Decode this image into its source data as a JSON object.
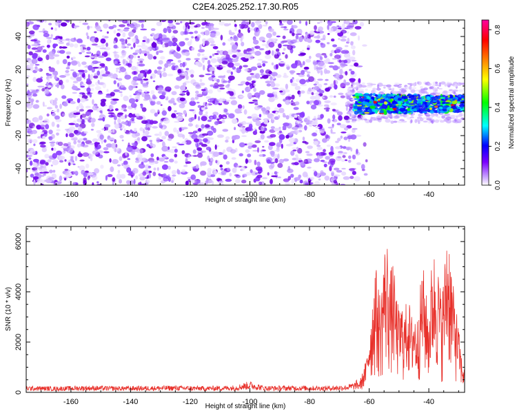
{
  "page": {
    "title": "C2E4.2025.252.17.30.R05"
  },
  "chart_data": [
    {
      "type": "heatmap",
      "title": "C2E4.2025.252.17.30.R05",
      "xlabel": "Height of straight line (km)",
      "ylabel": "Frequency (Hz)",
      "xlim": [
        -175,
        -28
      ],
      "ylim": [
        -50,
        50
      ],
      "xticks": [
        -160,
        -140,
        -120,
        -100,
        -80,
        -60,
        -40
      ],
      "yticks": [
        -40,
        -20,
        0,
        20,
        40
      ],
      "signal_band": {
        "x_start": -65,
        "x_end": -28,
        "center_frequency_hz": 0,
        "half_width_hz": 6,
        "peak_normalized_amplitude": 0.8
      },
      "noise_region": {
        "x_start": -175,
        "x_end": -65,
        "frequency_range": [
          -50,
          50
        ],
        "typical_normalized_amplitude": [
          0.0,
          0.1
        ]
      },
      "colorbar": {
        "label": "Normalized spectral amplitude",
        "range": [
          0.0,
          0.85
        ],
        "ticks": [
          "0.0",
          "0.2",
          "0.4",
          "0.6",
          "0.8"
        ],
        "colormap": [
          "#ffffff",
          "#c9a3ff",
          "#7a00ff",
          "#0000ff",
          "#00ffff",
          "#00ff00",
          "#ffff00",
          "#ff8000",
          "#ff0000",
          "#ff00a0"
        ]
      }
    },
    {
      "type": "line",
      "xlabel": "Height of straight line (km)",
      "ylabel": "SNR (10 * v/v)",
      "xlim": [
        -175,
        -28
      ],
      "ylim": [
        0,
        6600
      ],
      "xticks": [
        -160,
        -140,
        -120,
        -100,
        -80,
        -60,
        -40
      ],
      "yticks": [
        0,
        2000,
        4000,
        6000
      ],
      "series": [
        {
          "name": "SNR",
          "color": "#e8302a",
          "x": [
            -175,
            -165,
            -155,
            -145,
            -135,
            -125,
            -115,
            -105,
            -100,
            -95,
            -85,
            -75,
            -68,
            -65,
            -63,
            -61,
            -60,
            -59,
            -58,
            -57,
            -56,
            -55,
            -54,
            -53,
            -52,
            -51,
            -50,
            -49,
            -48,
            -47,
            -46,
            -45,
            -44,
            -43,
            -42,
            -41,
            -40,
            -39,
            -38,
            -37,
            -36,
            -35,
            -34,
            -33,
            -32,
            -31,
            -30,
            -29,
            -28
          ],
          "values": [
            200,
            180,
            210,
            190,
            200,
            210,
            190,
            220,
            350,
            200,
            210,
            200,
            230,
            300,
            500,
            1300,
            2600,
            3600,
            5300,
            4300,
            4000,
            5800,
            6150,
            4800,
            5300,
            4000,
            3300,
            3600,
            3200,
            4200,
            3000,
            3500,
            2800,
            4100,
            5200,
            4100,
            3100,
            5300,
            5700,
            5100,
            4100,
            4600,
            6580,
            6200,
            4400,
            3600,
            2600,
            1400,
            900
          ]
        }
      ]
    }
  ]
}
